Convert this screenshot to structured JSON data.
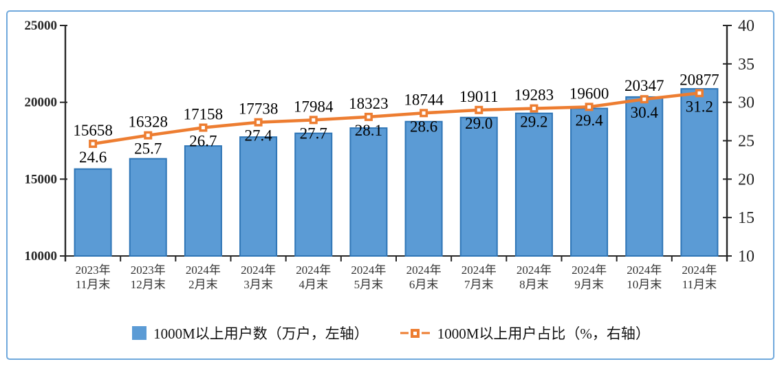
{
  "chart_data": {
    "type": "bar",
    "subtype": "bar-line-combo",
    "title": "",
    "categories": [
      {
        "line1": "2023年",
        "line2": "11月末"
      },
      {
        "line1": "2023年",
        "line2": "12月末"
      },
      {
        "line1": "2024年",
        "line2": "2月末"
      },
      {
        "line1": "2024年",
        "line2": "3月末"
      },
      {
        "line1": "2024年",
        "line2": "4月末"
      },
      {
        "line1": "2024年",
        "line2": "5月末"
      },
      {
        "line1": "2024年",
        "line2": "6月末"
      },
      {
        "line1": "2024年",
        "line2": "7月末"
      },
      {
        "line1": "2024年",
        "line2": "8月末"
      },
      {
        "line1": "2024年",
        "line2": "9月末"
      },
      {
        "line1": "2024年",
        "line2": "10月末"
      },
      {
        "line1": "2024年",
        "line2": "11月末"
      }
    ],
    "series": [
      {
        "name": "1000M以上用户数（万户，左轴）",
        "type": "bar",
        "axis": "left",
        "values": [
          15658,
          16328,
          17158,
          17738,
          17984,
          18323,
          18744,
          19011,
          19283,
          19600,
          20347,
          20877
        ],
        "labels": [
          "15658",
          "16328",
          "17158",
          "17738",
          "17984",
          "18323",
          "18744",
          "19011",
          "19283",
          "19600",
          "20347",
          "20877"
        ],
        "fill": "#5B9BD5",
        "stroke": "#2E75B6"
      },
      {
        "name": "1000M以上用户占比（%，右轴）",
        "type": "line",
        "axis": "right",
        "values": [
          24.6,
          25.7,
          26.7,
          27.4,
          27.7,
          28.1,
          28.6,
          29.0,
          29.2,
          29.4,
          30.4,
          31.2
        ],
        "labels": [
          "24.6",
          "25.7",
          "26.7",
          "27.4",
          "27.7",
          "28.1",
          "28.6",
          "29.0",
          "29.2",
          "29.4",
          "30.4",
          "31.2"
        ],
        "color": "#ED7D31"
      }
    ],
    "left_axis": {
      "min": 10000,
      "max": 25000,
      "step": 5000,
      "tick_labels": [
        "10000",
        "15000",
        "20000",
        "25000"
      ]
    },
    "right_axis": {
      "min": 10,
      "max": 40,
      "step": 5,
      "tick_labels": [
        "10",
        "15",
        "20",
        "25",
        "30",
        "35",
        "40"
      ]
    },
    "grid": false,
    "legend_position": "bottom"
  },
  "colors": {
    "bar_fill": "#5B9BD5",
    "bar_stroke": "#2E75B6",
    "line": "#ED7D31",
    "axis": "#262626",
    "label_text": "#000000",
    "category_text": "#333333",
    "frame_border": "#6FA8DC",
    "background": "#FFFFFF"
  }
}
